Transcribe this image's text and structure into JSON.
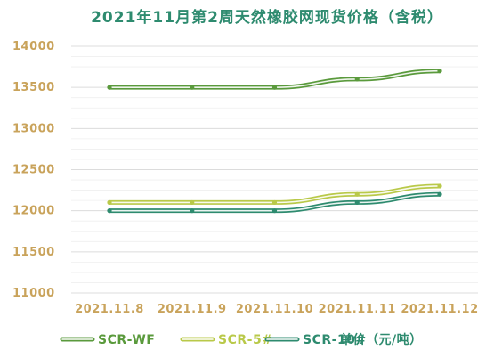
{
  "chart_data": {
    "type": "line",
    "title": "2021年11月第2周天然橡胶网现货价格（含税）",
    "categories": [
      "2021.11.8",
      "2021.11.9",
      "2021.11.10",
      "2021.11.11",
      "2021.11.12"
    ],
    "yticks": [
      "14000",
      "13500",
      "13000",
      "12500",
      "12000",
      "11500",
      "11000"
    ],
    "ylim": [
      11000,
      14000
    ],
    "grid": true,
    "legend_position": "bottom",
    "unit_label": "单价（元/吨）",
    "series": [
      {
        "name": "SCR-WF",
        "values": [
          13500,
          13500,
          13500,
          13600,
          13700
        ],
        "color": "#5a9a3c"
      },
      {
        "name": "SCR-5#",
        "values": [
          12100,
          12100,
          12100,
          12200,
          12300
        ],
        "color": "#b9c949"
      },
      {
        "name": "SCR-10#",
        "values": [
          12000,
          12000,
          12000,
          12100,
          12200
        ],
        "color": "#2e8b6f"
      }
    ],
    "title_color": "#2e8b6f",
    "tick_color": "#c9a35b"
  }
}
